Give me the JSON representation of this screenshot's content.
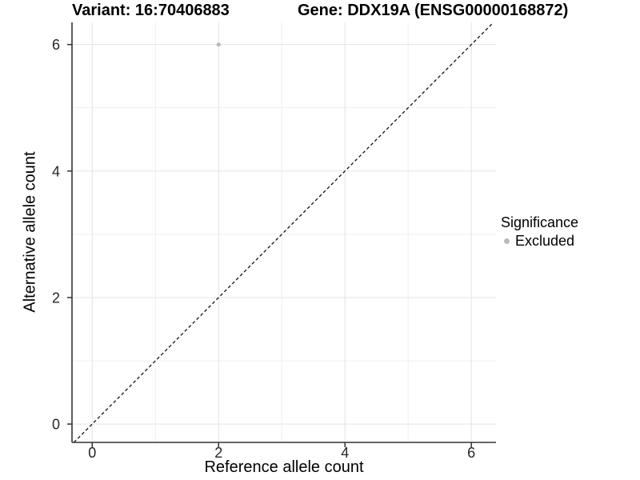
{
  "figure": {
    "background": "#ffffff"
  },
  "legend": {
    "title": "Significance",
    "position": "right",
    "items": [
      {
        "label": "Excluded",
        "color": "#b9b9b9",
        "marker": "circle"
      }
    ]
  },
  "chart_data": {
    "type": "scatter",
    "title_left": "Variant: 16:70406883",
    "title_right": "Gene: DDX19A (ENSG00000168872)",
    "xlabel": "Reference allele count",
    "ylabel": "Alternative allele count",
    "x_ticks": [
      0,
      2,
      4,
      6
    ],
    "y_ticks": [
      0,
      2,
      4,
      6
    ],
    "x_minor_gridlines": [
      1,
      3,
      5
    ],
    "y_minor_gridlines": [
      1,
      3,
      5
    ],
    "xlim": [
      -0.32,
      6.39
    ],
    "ylim": [
      -0.29,
      6.35
    ],
    "grid": true,
    "legend_position": "right",
    "series": [
      {
        "name": "Excluded",
        "color": "#b9b9b9",
        "point_radius": 2.6,
        "points": [
          {
            "x": 2,
            "y": 6
          }
        ]
      }
    ],
    "reference_line": {
      "type": "identity",
      "slope": 1,
      "intercept": 0,
      "style": "dashed",
      "color": "#111111"
    },
    "colors": {
      "grid_major": "#e3e3e3",
      "grid_minor": "#efefef",
      "axis_line": "#333333",
      "tick_label": "#262626"
    }
  }
}
